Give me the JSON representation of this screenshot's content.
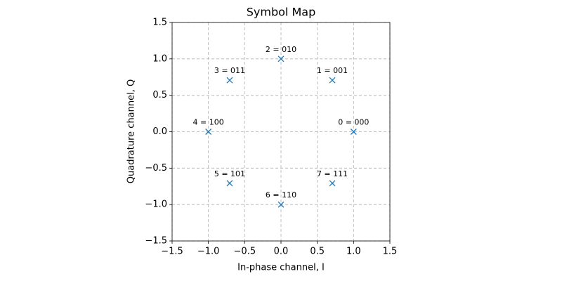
{
  "chart_data": {
    "type": "scatter",
    "title": "Symbol Map",
    "xlabel": "In-phase channel, I",
    "ylabel": "Quadrature channel, Q",
    "series": [
      {
        "color": "#1f77b4",
        "marker": "x",
        "x": [
          1,
          0.707,
          0,
          -0.707,
          -1,
          -0.707,
          0,
          0.707
        ],
        "values": [
          0,
          0.707,
          1,
          0.707,
          0,
          -0.707,
          -1,
          -0.707
        ],
        "point_labels": [
          "0 = 000",
          "1 = 001",
          "2 = 010",
          "3 = 011",
          "4 = 100",
          "5 = 101",
          "6 = 110",
          "7 = 111"
        ]
      }
    ],
    "xlim": [
      -1.5,
      1.5
    ],
    "ylim": [
      -1.5,
      1.5
    ],
    "xticks": [
      {
        "value": -1.5,
        "label": "−1.5"
      },
      {
        "value": -1,
        "label": "−1.0"
      },
      {
        "value": -0.5,
        "label": "−0.5"
      },
      {
        "value": 0,
        "label": "0.0"
      },
      0.5,
      {
        "value": 1,
        "label": "1.0"
      },
      1.5
    ],
    "yticks": [
      {
        "value": -1.5,
        "label": "−1.5"
      },
      {
        "value": -1,
        "label": "−1.0"
      },
      {
        "value": -0.5,
        "label": "−0.5"
      },
      {
        "value": 0,
        "label": "0.0"
      },
      0.5,
      {
        "value": 1,
        "label": "1.0"
      },
      1.5
    ],
    "grid": true
  }
}
